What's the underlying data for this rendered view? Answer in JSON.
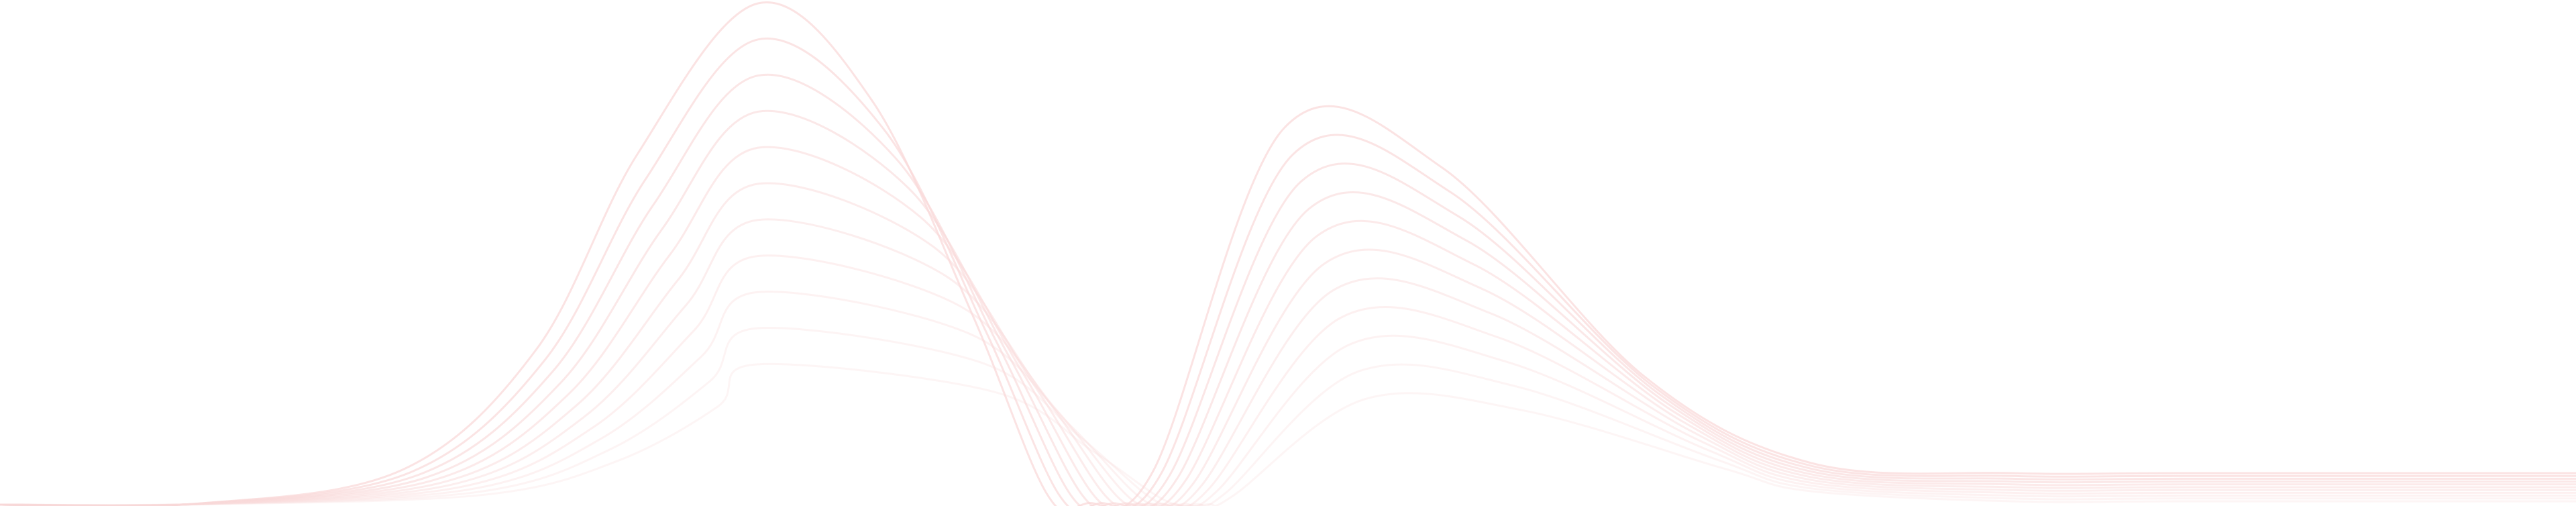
{
  "decoration": {
    "type": "layered-wave-lines",
    "line_count": 11,
    "line_color": "#f9d9d9",
    "background": "#ffffff"
  }
}
